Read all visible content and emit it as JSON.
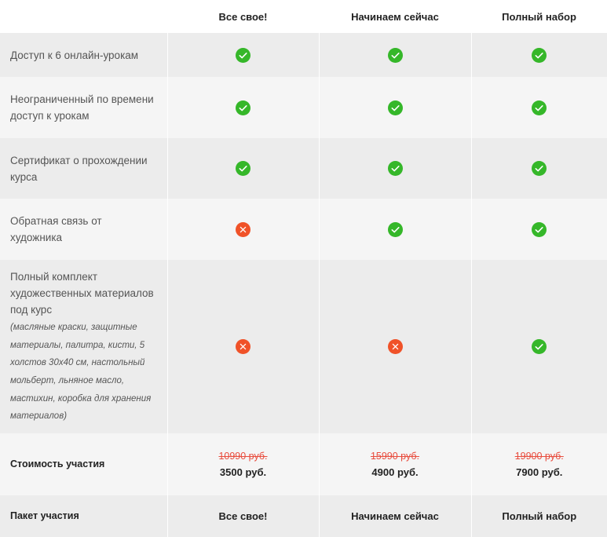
{
  "columns": [
    "Все свое!",
    "Начинаем сейчас",
    "Полный набор"
  ],
  "colors": {
    "check": "#35b729",
    "cross": "#f05228",
    "old_price": "#e84c3d"
  },
  "rows": [
    {
      "label_lines": [
        "Доступ к 6 онлайн-урокам"
      ],
      "values": [
        "check-icon",
        "check-icon",
        "check-icon"
      ]
    },
    {
      "label_lines": [
        "Неограниченный по времени",
        "доступ к урокам"
      ],
      "values": [
        "check-icon",
        "check-icon",
        "check-icon"
      ]
    },
    {
      "label_lines": [
        "Сертификат о прохождении",
        "курса"
      ],
      "values": [
        "check-icon",
        "check-icon",
        "check-icon"
      ]
    },
    {
      "label_lines": [
        "Обратная связь от",
        "художника"
      ],
      "values": [
        "cross-icon",
        "check-icon",
        "check-icon"
      ]
    },
    {
      "label_lines": [
        "Полный комплект",
        "художественных материалов",
        "под курс"
      ],
      "note_lines": [
        "(масляные краски, защитные",
        "материалы, палитра, кисти, 5",
        "холстов 30х40 см, настольный",
        "мольберт, льняное масло,",
        "мастихин, коробка для хранения",
        "материалов)"
      ],
      "values": [
        "cross-icon",
        "cross-icon",
        "check-icon"
      ]
    }
  ],
  "price": {
    "label": "Стоимость участия",
    "old": [
      "10990 руб.",
      "15990 руб.",
      "19900 руб."
    ],
    "new": [
      "3500 руб.",
      "4900 руб.",
      "7900 руб."
    ]
  },
  "package": {
    "label": "Пакет участия",
    "names": [
      "Все свое!",
      "Начинаем сейчас",
      "Полный набор"
    ]
  }
}
